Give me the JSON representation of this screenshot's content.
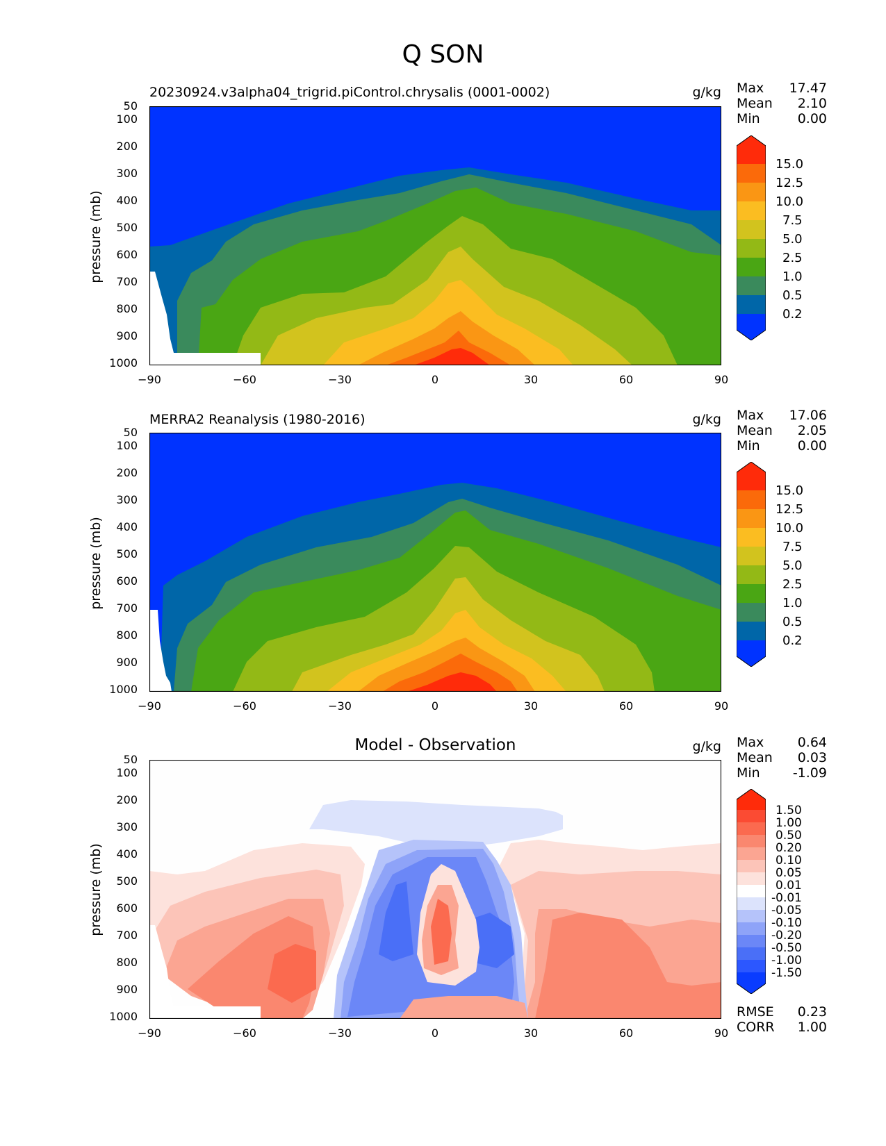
{
  "figure_title": "Q SON",
  "chart_data": [
    {
      "type": "heatmap",
      "subtype": "filled-contour zonal-mean cross section",
      "title": "20230924.v3alpha04_trigrid.piControl.chrysalis (0001-0002)",
      "units": "g/kg",
      "stats": {
        "Max": "17.47",
        "Mean": "2.10",
        "Min": "0.00"
      },
      "ylabel": "pressure (mb)",
      "xlim": [
        -90,
        90
      ],
      "x_ticks": [
        "−90",
        "−60",
        "−30",
        "0",
        "30",
        "60",
        "90"
      ],
      "y_ticks": [
        "50",
        "100",
        "200",
        "300",
        "400",
        "500",
        "600",
        "700",
        "800",
        "900",
        "1000"
      ],
      "colorbar_ticks": [
        "15.0",
        "12.5",
        "10.0",
        "7.5",
        "5.0",
        "2.5",
        "1.0",
        "0.5",
        "0.2"
      ],
      "levels": [
        0.2,
        0.5,
        1.0,
        2.5,
        5.0,
        7.5,
        10.0,
        12.5,
        15.0
      ],
      "colors": [
        "#0033ff",
        "#0066a8",
        "#3a8a5c",
        "#4aa614",
        "#93b916",
        "#d2c31e",
        "#fbbd21",
        "#fa9614",
        "#fb6a0a",
        "#ff2b0a"
      ],
      "missing_region": "white (below surface) poleward of about 55S near 950-1000 mb and along Antarctic edge"
    },
    {
      "type": "heatmap",
      "subtype": "filled-contour zonal-mean cross section",
      "title": "MERRA2 Reanalysis (1980-2016)",
      "units": "g/kg",
      "stats": {
        "Max": "17.06",
        "Mean": "2.05",
        "Min": "0.00"
      },
      "ylabel": "pressure (mb)",
      "xlim": [
        -90,
        90
      ],
      "x_ticks": [
        "−90",
        "−60",
        "−30",
        "0",
        "30",
        "60",
        "90"
      ],
      "y_ticks": [
        "50",
        "100",
        "200",
        "300",
        "400",
        "500",
        "600",
        "700",
        "800",
        "900",
        "1000"
      ],
      "colorbar_ticks": [
        "15.0",
        "12.5",
        "10.0",
        "7.5",
        "5.0",
        "2.5",
        "1.0",
        "0.5",
        "0.2"
      ],
      "levels": [
        0.2,
        0.5,
        1.0,
        2.5,
        5.0,
        7.5,
        10.0,
        12.5,
        15.0
      ],
      "colors": [
        "#0033ff",
        "#0066a8",
        "#3a8a5c",
        "#4aa614",
        "#93b916",
        "#d2c31e",
        "#fbbd21",
        "#fa9614",
        "#fb6a0a",
        "#ff2b0a"
      ]
    },
    {
      "type": "heatmap",
      "subtype": "filled-contour difference cross section",
      "title": "Model - Observation",
      "units": "g/kg",
      "stats": {
        "Max": "0.64",
        "Mean": "0.03",
        "Min": "-1.09"
      },
      "metrics": {
        "RMSE": "0.23",
        "CORR": "1.00"
      },
      "ylabel": "pressure (mb)",
      "xlim": [
        -90,
        90
      ],
      "x_ticks": [
        "−90",
        "−60",
        "−30",
        "0",
        "30",
        "60",
        "90"
      ],
      "y_ticks": [
        "50",
        "100",
        "200",
        "300",
        "400",
        "500",
        "600",
        "700",
        "800",
        "900",
        "1000"
      ],
      "colorbar_ticks": [
        "1.50",
        "1.00",
        "0.50",
        "0.20",
        "0.10",
        "0.05",
        "0.01",
        "-0.01",
        "-0.05",
        "-0.10",
        "-0.20",
        "-0.50",
        "-1.00",
        "-1.50"
      ],
      "levels": [
        -1.5,
        -1.0,
        -0.5,
        -0.2,
        -0.1,
        -0.05,
        -0.01,
        0.01,
        0.05,
        0.1,
        0.2,
        0.5,
        1.0,
        1.5
      ],
      "colors": [
        "#0a3cff",
        "#2c57ff",
        "#4a6ff7",
        "#6b87f7",
        "#8ea3f8",
        "#b5c3fa",
        "#dce3fc",
        "#ffffff",
        "#fde2dc",
        "#fcc4b8",
        "#fba592",
        "#fa876f",
        "#fb6a4f",
        "#fb4b33",
        "#ff2b0a"
      ]
    }
  ]
}
